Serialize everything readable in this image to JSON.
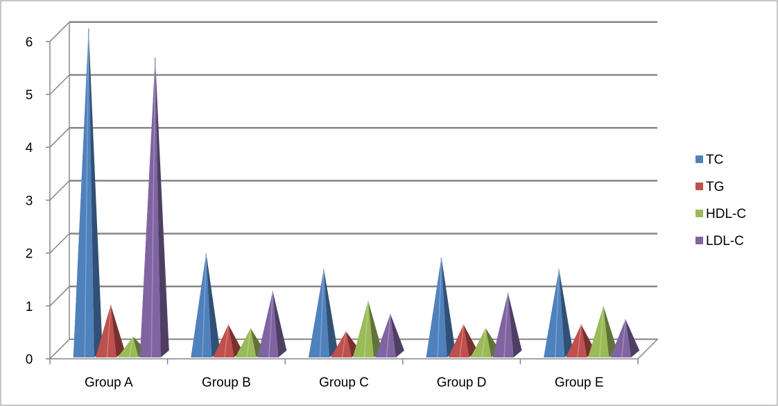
{
  "chart_data": {
    "type": "bar",
    "style": "3d-pyramid",
    "categories": [
      "Group A",
      "Group B",
      "Group C",
      "Group D",
      "Group E"
    ],
    "series": [
      {
        "name": "TC",
        "color": "#4F81BD",
        "values": [
          6.05,
          1.8,
          1.5,
          1.72,
          1.5
        ]
      },
      {
        "name": "TG",
        "color": "#C0504D",
        "values": [
          0.82,
          0.45,
          0.32,
          0.45,
          0.45
        ]
      },
      {
        "name": "HDL-C",
        "color": "#9BBB59",
        "values": [
          0.22,
          0.38,
          0.9,
          0.38,
          0.8
        ]
      },
      {
        "name": "LDL-C",
        "color": "#8064A2",
        "values": [
          5.5,
          1.08,
          0.65,
          1.05,
          0.55
        ]
      }
    ],
    "y_ticks": [
      "0",
      "1",
      "2",
      "3",
      "4",
      "5",
      "6"
    ],
    "ylim": [
      0,
      6
    ],
    "grid": true,
    "legend_position": "right",
    "title": "",
    "xlabel": "",
    "ylabel": ""
  }
}
